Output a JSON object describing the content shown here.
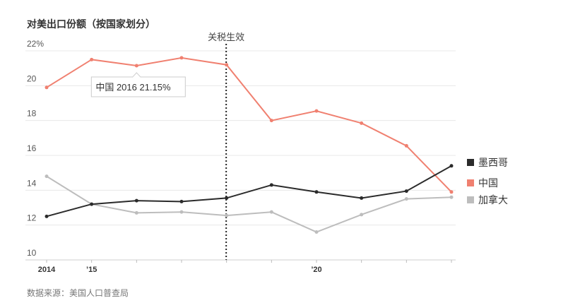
{
  "chart_data": {
    "type": "line",
    "title": "对美出口份额（按国家划分）",
    "x": [
      2014,
      2015,
      2016,
      2017,
      2018,
      2019,
      2020,
      2021,
      2022,
      2023
    ],
    "x_tick_labels": [
      {
        "x": 2014,
        "label": "2014"
      },
      {
        "x": 2015,
        "label": "’15"
      },
      {
        "x": 2020,
        "label": "’20"
      }
    ],
    "ylim": [
      10,
      22
    ],
    "y_ticks": [
      {
        "value": 10,
        "label": "10"
      },
      {
        "value": 12,
        "label": "12"
      },
      {
        "value": 14,
        "label": "14"
      },
      {
        "value": 16,
        "label": "16"
      },
      {
        "value": 18,
        "label": "18"
      },
      {
        "value": 20,
        "label": "20"
      },
      {
        "value": 22,
        "label": "22%"
      }
    ],
    "series": [
      {
        "name": "墨西哥",
        "color": "#2b2b2b",
        "values": [
          12.5,
          13.2,
          13.4,
          13.35,
          13.55,
          14.3,
          13.9,
          13.55,
          13.95,
          15.4
        ]
      },
      {
        "name": "中国",
        "color": "#f08070",
        "values": [
          19.9,
          21.5,
          21.15,
          21.6,
          21.2,
          18.0,
          18.55,
          17.85,
          16.55,
          13.9
        ]
      },
      {
        "name": "加拿大",
        "color": "#bdbdbd",
        "values": [
          14.8,
          13.2,
          12.7,
          12.75,
          12.55,
          12.75,
          11.6,
          12.6,
          13.5,
          13.6
        ]
      }
    ],
    "annotation": {
      "label": "关税生效",
      "x": 2018
    },
    "tooltip": {
      "text": "中国 2016 21.15%",
      "series": "中国",
      "x": 2016
    },
    "grid": true,
    "legend": "right"
  },
  "source": "数据来源：美国人口普查局"
}
